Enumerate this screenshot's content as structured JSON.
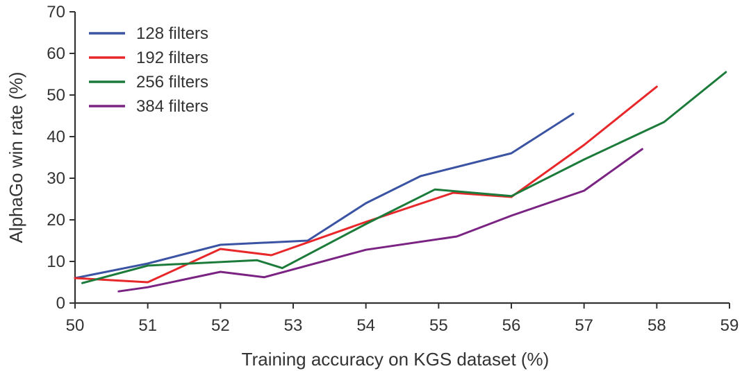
{
  "chart_data": {
    "type": "line",
    "title": "",
    "xlabel": "Training accuracy on KGS dataset (%)",
    "ylabel": "AlphaGo win rate (%)",
    "xlim": [
      50,
      59
    ],
    "ylim": [
      0,
      70
    ],
    "xticks": [
      50,
      51,
      52,
      53,
      54,
      55,
      56,
      57,
      58,
      59
    ],
    "yticks": [
      0,
      10,
      20,
      30,
      40,
      50,
      60,
      70
    ],
    "grid": false,
    "legend": "top-left",
    "series": [
      {
        "name": "128 filters",
        "color": "#3b53a3",
        "points": [
          [
            50.0,
            6.0
          ],
          [
            51.0,
            9.5
          ],
          [
            52.0,
            14.0
          ],
          [
            53.2,
            15.0
          ],
          [
            54.0,
            24.0
          ],
          [
            54.75,
            30.5
          ],
          [
            56.0,
            36.0
          ],
          [
            56.85,
            45.5
          ]
        ]
      },
      {
        "name": "192 filters",
        "color": "#e8272a",
        "points": [
          [
            50.0,
            6.0
          ],
          [
            51.0,
            5.0
          ],
          [
            52.0,
            13.0
          ],
          [
            52.7,
            11.5
          ],
          [
            54.0,
            19.5
          ],
          [
            55.2,
            26.5
          ],
          [
            56.0,
            25.5
          ],
          [
            57.0,
            38.0
          ],
          [
            58.0,
            52.0
          ]
        ]
      },
      {
        "name": "256 filters",
        "color": "#1c7b3a",
        "points": [
          [
            50.1,
            4.8
          ],
          [
            51.0,
            9.0
          ],
          [
            52.5,
            10.3
          ],
          [
            52.85,
            8.4
          ],
          [
            54.0,
            19.0
          ],
          [
            54.95,
            27.3
          ],
          [
            56.0,
            25.7
          ],
          [
            57.0,
            34.5
          ],
          [
            58.1,
            43.5
          ],
          [
            58.95,
            55.5
          ]
        ]
      },
      {
        "name": "384 filters",
        "color": "#7a2383",
        "points": [
          [
            50.6,
            2.8
          ],
          [
            51.0,
            3.8
          ],
          [
            52.0,
            7.5
          ],
          [
            52.6,
            6.2
          ],
          [
            54.0,
            12.8
          ],
          [
            55.25,
            16.0
          ],
          [
            56.0,
            21.0
          ],
          [
            57.0,
            27.0
          ],
          [
            57.8,
            37.0
          ]
        ]
      }
    ]
  }
}
